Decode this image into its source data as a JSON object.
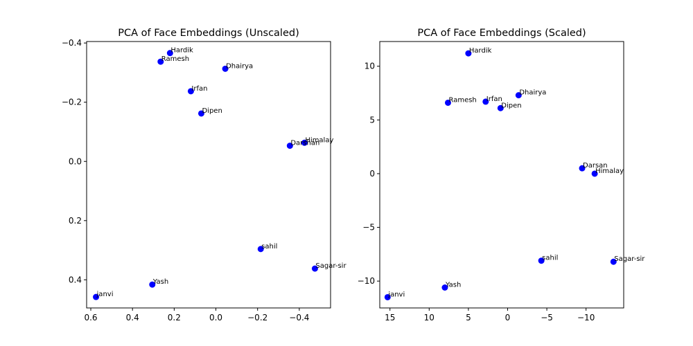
{
  "chart_data": [
    {
      "type": "scatter",
      "title": "PCA of Face Embeddings (Unscaled)",
      "xlabel": "",
      "ylabel": "",
      "xlim": [
        0.62,
        -0.55
      ],
      "ylim": [
        0.495,
        -0.405
      ],
      "x_inverted": true,
      "y_inverted": true,
      "xticks": [
        0.6,
        0.4,
        0.2,
        0.0,
        -0.2,
        -0.4
      ],
      "xtick_labels": [
        "0.6",
        "0.4",
        "0.2",
        "0.0",
        "−0.2",
        "−0.4"
      ],
      "yticks": [
        -0.4,
        -0.2,
        0.0,
        0.2,
        0.4
      ],
      "ytick_labels": [
        "−0.4",
        "−0.2",
        "0.0",
        "0.2",
        "0.4"
      ],
      "grid": false,
      "marker_color": "#0000ff",
      "points": [
        {
          "label": "Hardik",
          "x": 0.22,
          "y": -0.366
        },
        {
          "label": "Ramesh",
          "x": 0.265,
          "y": -0.337
        },
        {
          "label": "Dhairya",
          "x": -0.045,
          "y": -0.313
        },
        {
          "label": "Irfan",
          "x": 0.12,
          "y": -0.237
        },
        {
          "label": "Dipen",
          "x": 0.07,
          "y": -0.162
        },
        {
          "label": "Himalay",
          "x": -0.425,
          "y": -0.063
        },
        {
          "label": "Darshan",
          "x": -0.355,
          "y": -0.053
        },
        {
          "label": "sahil",
          "x": -0.215,
          "y": 0.296
        },
        {
          "label": "Sagar-sir",
          "x": -0.475,
          "y": 0.362
        },
        {
          "label": "Yash",
          "x": 0.305,
          "y": 0.416
        },
        {
          "label": "janvi",
          "x": 0.575,
          "y": 0.458
        }
      ]
    },
    {
      "type": "scatter",
      "title": "PCA of Face Embeddings (Scaled)",
      "xlabel": "",
      "ylabel": "",
      "xlim": [
        16.3,
        -14.8
      ],
      "ylim": [
        -12.5,
        12.3
      ],
      "x_inverted": true,
      "y_inverted": false,
      "xticks": [
        15,
        10,
        5,
        0,
        -5,
        -10
      ],
      "xtick_labels": [
        "15",
        "10",
        "5",
        "0",
        "−5",
        "−10"
      ],
      "yticks": [
        -10,
        -5,
        0,
        5,
        10
      ],
      "ytick_labels": [
        "−10",
        "−5",
        "0",
        "5",
        "10"
      ],
      "grid": false,
      "marker_color": "#0000ff",
      "points": [
        {
          "label": "Hardik",
          "x": 5.0,
          "y": 11.2
        },
        {
          "label": "Dhairya",
          "x": -1.4,
          "y": 7.3
        },
        {
          "label": "Ramesh",
          "x": 7.6,
          "y": 6.6
        },
        {
          "label": "Irfan",
          "x": 2.8,
          "y": 6.7
        },
        {
          "label": "Dipen",
          "x": 0.9,
          "y": 6.1
        },
        {
          "label": "Darsan",
          "x": -9.5,
          "y": 0.5
        },
        {
          "label": "Himalay",
          "x": -11.1,
          "y": 0.0
        },
        {
          "label": "sahil",
          "x": -4.3,
          "y": -8.1
        },
        {
          "label": "Sagar-sir",
          "x": -13.5,
          "y": -8.2
        },
        {
          "label": "Yash",
          "x": 8.0,
          "y": -10.6
        },
        {
          "label": "janvi",
          "x": 15.3,
          "y": -11.5
        }
      ]
    }
  ]
}
